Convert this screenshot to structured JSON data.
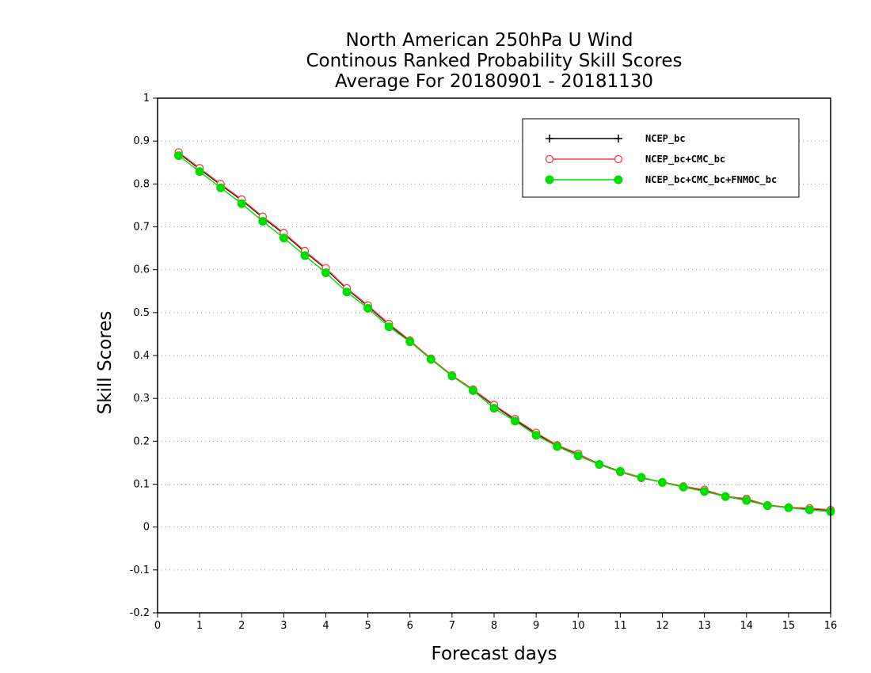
{
  "chart_data": {
    "type": "line",
    "title_lines": [
      "North American 250hPa U Wind",
      "Continous Ranked Probability Skill Scores",
      "Average For 20180901 - 20181130"
    ],
    "xlabel": "Forecast days",
    "ylabel": "Skill Scores",
    "xlim": [
      0,
      16
    ],
    "ylim": [
      -0.2,
      1
    ],
    "xticks": [
      0,
      1,
      2,
      3,
      4,
      5,
      6,
      7,
      8,
      9,
      10,
      11,
      12,
      13,
      14,
      15,
      16
    ],
    "yticks": [
      -0.2,
      -0.1,
      0,
      0.1,
      0.2,
      0.3,
      0.4,
      0.5,
      0.6,
      0.7,
      0.8,
      0.9,
      1
    ],
    "ytick_labels": [
      "-0.2",
      "-0.1",
      "0",
      "0.1",
      "0.2",
      "0.3",
      "0.4",
      "0.5",
      "0.6",
      "0.7",
      "0.8",
      "0.9",
      "1"
    ],
    "grid": "horizontal dotted",
    "legend_position": "top-right",
    "x": [
      0.5,
      1,
      1.5,
      2,
      2.5,
      3,
      3.5,
      4,
      4.5,
      5,
      5.5,
      6,
      6.5,
      7,
      7.5,
      8,
      8.5,
      9,
      9.5,
      10,
      10.5,
      11,
      11.5,
      12,
      12.5,
      13,
      13.5,
      14,
      14.5,
      15,
      15.5,
      16
    ],
    "series": [
      {
        "name": "NCEP_bc",
        "color": "#000000",
        "marker": "plus",
        "values": [
          0.872,
          0.835,
          0.798,
          0.762,
          0.722,
          0.684,
          0.642,
          0.602,
          0.555,
          0.515,
          0.472,
          0.433,
          0.392,
          0.353,
          0.32,
          0.283,
          0.25,
          0.218,
          0.19,
          0.17,
          0.147,
          0.13,
          0.115,
          0.105,
          0.094,
          0.086,
          0.072,
          0.064,
          0.051,
          0.046,
          0.043,
          0.039
        ]
      },
      {
        "name": "NCEP_bc+CMC_bc",
        "color": "#ff3a3a",
        "marker": "open-circle",
        "values": [
          0.874,
          0.837,
          0.8,
          0.764,
          0.724,
          0.686,
          0.644,
          0.604,
          0.557,
          0.517,
          0.474,
          0.435,
          0.393,
          0.354,
          0.321,
          0.285,
          0.252,
          0.22,
          0.191,
          0.171,
          0.146,
          0.128,
          0.114,
          0.105,
          0.095,
          0.087,
          0.072,
          0.066,
          0.051,
          0.046,
          0.044,
          0.04
        ]
      },
      {
        "name": "NCEP_bc+CMC_bc+FNMOC_bc",
        "color": "#00dd00",
        "marker": "filled-circle",
        "values": [
          0.866,
          0.829,
          0.791,
          0.754,
          0.713,
          0.674,
          0.633,
          0.593,
          0.548,
          0.51,
          0.467,
          0.432,
          0.391,
          0.352,
          0.318,
          0.277,
          0.247,
          0.214,
          0.188,
          0.166,
          0.146,
          0.13,
          0.116,
          0.104,
          0.093,
          0.083,
          0.071,
          0.062,
          0.05,
          0.045,
          0.04,
          0.036
        ]
      }
    ]
  }
}
